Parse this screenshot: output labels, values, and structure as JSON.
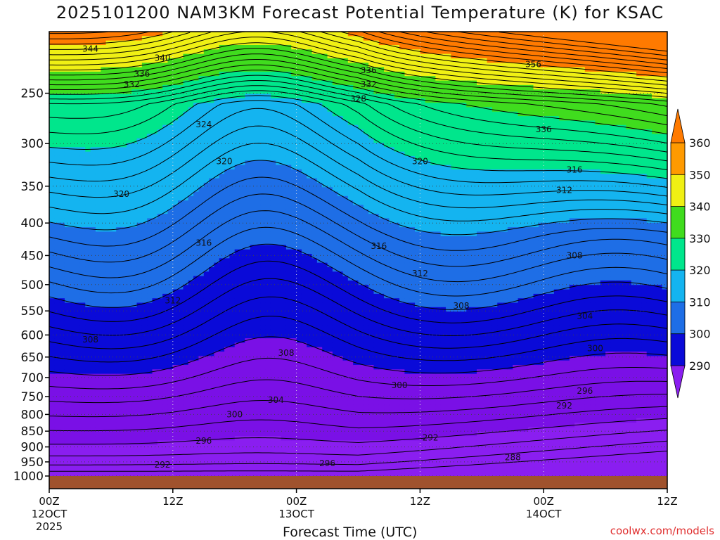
{
  "chart_data": {
    "type": "heatmap",
    "title": "2025101200 NAM3KM Forecast Potential Temperature (K) for KSAC",
    "xlabel": "Forecast Time (UTC)",
    "ylabel": "",
    "y_scale": "log-pressure (inverted)",
    "y_unit": "hPa",
    "y_ticks": [
      250,
      300,
      350,
      400,
      450,
      500,
      550,
      600,
      650,
      700,
      750,
      800,
      850,
      900,
      950,
      1000
    ],
    "ylim": [
      1000,
      200
    ],
    "x_ticks": [
      {
        "hour": 0,
        "label": "00Z",
        "sub1": "12OCT",
        "sub2": "2025"
      },
      {
        "hour": 12,
        "label": "12Z",
        "sub1": "",
        "sub2": ""
      },
      {
        "hour": 24,
        "label": "00Z",
        "sub1": "13OCT",
        "sub2": ""
      },
      {
        "hour": 36,
        "label": "12Z",
        "sub1": "",
        "sub2": ""
      },
      {
        "hour": 48,
        "label": "00Z",
        "sub1": "14OCT",
        "sub2": ""
      },
      {
        "hour": 60,
        "label": "12Z",
        "sub1": "",
        "sub2": ""
      }
    ],
    "xlim_hours": [
      0,
      60
    ],
    "colorbar": {
      "levels": [
        290,
        300,
        310,
        320,
        330,
        340,
        350,
        360
      ],
      "colors": [
        "#7a10e6",
        "#0a0ad8",
        "#1e6ee6",
        "#14b4f0",
        "#00e68c",
        "#40dc1e",
        "#f0f014",
        "#ff9a00"
      ],
      "extend": "both"
    },
    "contour_labels": [
      {
        "hour": 4,
        "p": 213,
        "text": "344"
      },
      {
        "hour": 11,
        "p": 220,
        "text": "340"
      },
      {
        "hour": 9,
        "p": 233,
        "text": "336"
      },
      {
        "hour": 8,
        "p": 242,
        "text": "332"
      },
      {
        "hour": 7,
        "p": 360,
        "text": "320"
      },
      {
        "hour": 15,
        "p": 280,
        "text": "324"
      },
      {
        "hour": 17,
        "p": 320,
        "text": "320"
      },
      {
        "hour": 15,
        "p": 430,
        "text": "316"
      },
      {
        "hour": 12,
        "p": 530,
        "text": "312"
      },
      {
        "hour": 4,
        "p": 610,
        "text": "308"
      },
      {
        "hour": 23,
        "p": 640,
        "text": "308"
      },
      {
        "hour": 18,
        "p": 800,
        "text": "300"
      },
      {
        "hour": 22,
        "p": 760,
        "text": "304"
      },
      {
        "hour": 15,
        "p": 880,
        "text": "296"
      },
      {
        "hour": 11,
        "p": 960,
        "text": "292"
      },
      {
        "hour": 27,
        "p": 955,
        "text": "296"
      },
      {
        "hour": 31,
        "p": 230,
        "text": "336"
      },
      {
        "hour": 31,
        "p": 242,
        "text": "332"
      },
      {
        "hour": 30,
        "p": 255,
        "text": "328"
      },
      {
        "hour": 36,
        "p": 320,
        "text": "320"
      },
      {
        "hour": 32,
        "p": 435,
        "text": "316"
      },
      {
        "hour": 36,
        "p": 480,
        "text": "312"
      },
      {
        "hour": 40,
        "p": 540,
        "text": "308"
      },
      {
        "hour": 34,
        "p": 720,
        "text": "300"
      },
      {
        "hour": 37,
        "p": 870,
        "text": "292"
      },
      {
        "hour": 47,
        "p": 225,
        "text": "356"
      },
      {
        "hour": 48,
        "p": 285,
        "text": "336"
      },
      {
        "hour": 51,
        "p": 330,
        "text": "316"
      },
      {
        "hour": 50,
        "p": 355,
        "text": "312"
      },
      {
        "hour": 51,
        "p": 450,
        "text": "308"
      },
      {
        "hour": 52,
        "p": 560,
        "text": "304"
      },
      {
        "hour": 53,
        "p": 630,
        "text": "300"
      },
      {
        "hour": 52,
        "p": 735,
        "text": "296"
      },
      {
        "hour": 50,
        "p": 775,
        "text": "292"
      },
      {
        "hour": 45,
        "p": 935,
        "text": "288"
      }
    ]
  },
  "footer": {
    "credit": "coolwx.com/models"
  }
}
